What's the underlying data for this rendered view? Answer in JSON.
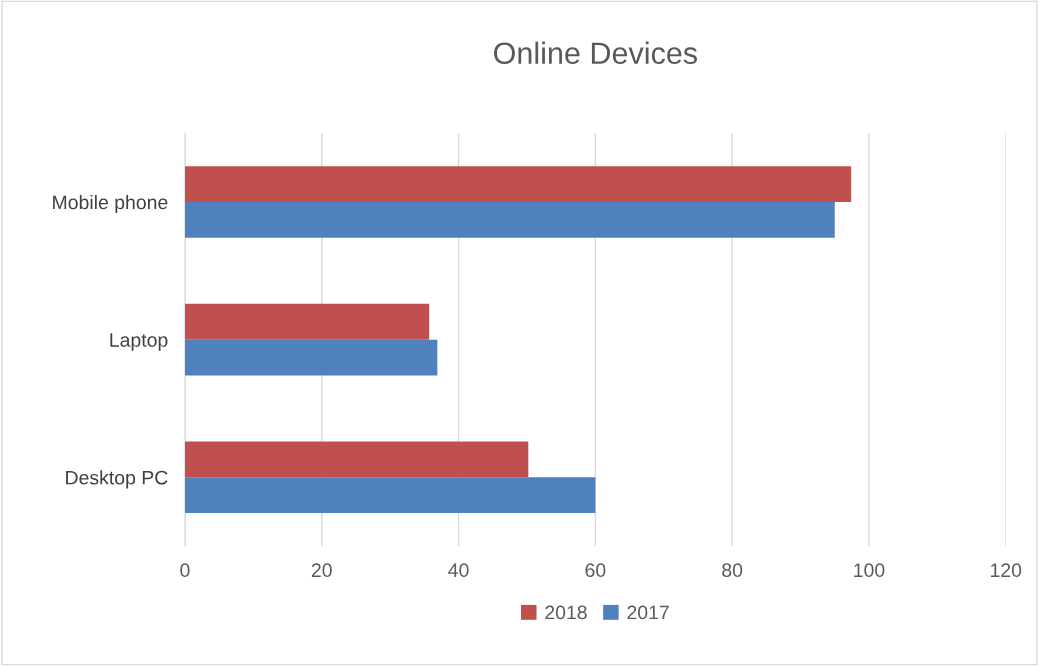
{
  "chart_data": {
    "type": "bar",
    "orientation": "horizontal",
    "title": "Online Devices",
    "categories": [
      "Mobile phone",
      "Laptop",
      "Desktop PC"
    ],
    "series": [
      {
        "name": "2018",
        "color": "#c0504d",
        "values": [
          97.4,
          35.7,
          50.2
        ]
      },
      {
        "name": "2017",
        "color": "#4f81bd",
        "values": [
          95.0,
          36.9,
          60.0
        ]
      }
    ],
    "xlim": [
      0,
      120
    ],
    "xticks": [
      0,
      20,
      40,
      60,
      80,
      100,
      120
    ],
    "grid": "x",
    "legend": "bottom"
  }
}
